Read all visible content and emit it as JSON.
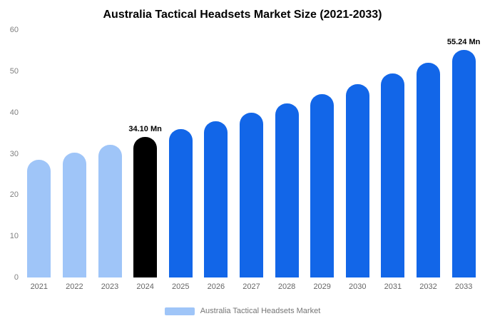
{
  "title": "Australia Tactical Headsets Market Size (2021-2033)",
  "legend": {
    "label": "Australia Tactical Headsets Market",
    "swatch_color": "#9fc5f8"
  },
  "colors": {
    "historical_bar": "#9fc5f8",
    "base_year_bar": "#000000",
    "forecast_bar": "#1266e8",
    "tick_text": "#808080",
    "x_label_text": "#666666"
  },
  "chart_data": {
    "type": "bar",
    "title": "Australia Tactical Headsets Market Size (2021-2033)",
    "categories": [
      "2021",
      "2022",
      "2023",
      "2024",
      "2025",
      "2026",
      "2027",
      "2028",
      "2029",
      "2030",
      "2031",
      "2032",
      "2033"
    ],
    "values": [
      28.6,
      30.3,
      32.1,
      34.1,
      35.9,
      37.9,
      40.0,
      42.2,
      44.5,
      46.9,
      49.4,
      52.1,
      55.24
    ],
    "unit": "Mn",
    "xlabel": "",
    "ylabel": "",
    "ylim": [
      0,
      60
    ],
    "y_ticks": [
      0,
      10,
      20,
      30,
      40,
      50,
      60
    ],
    "grid": false,
    "legend_position": "bottom",
    "bar_colors": [
      "#9fc5f8",
      "#9fc5f8",
      "#9fc5f8",
      "#000000",
      "#1266e8",
      "#1266e8",
      "#1266e8",
      "#1266e8",
      "#1266e8",
      "#1266e8",
      "#1266e8",
      "#1266e8",
      "#1266e8"
    ],
    "data_labels": [
      {
        "index": 3,
        "label": "34.10 Mn"
      },
      {
        "index": 12,
        "label": "55.24 Mn"
      }
    ],
    "legend_entries": [
      "Australia Tactical Headsets Market"
    ]
  }
}
